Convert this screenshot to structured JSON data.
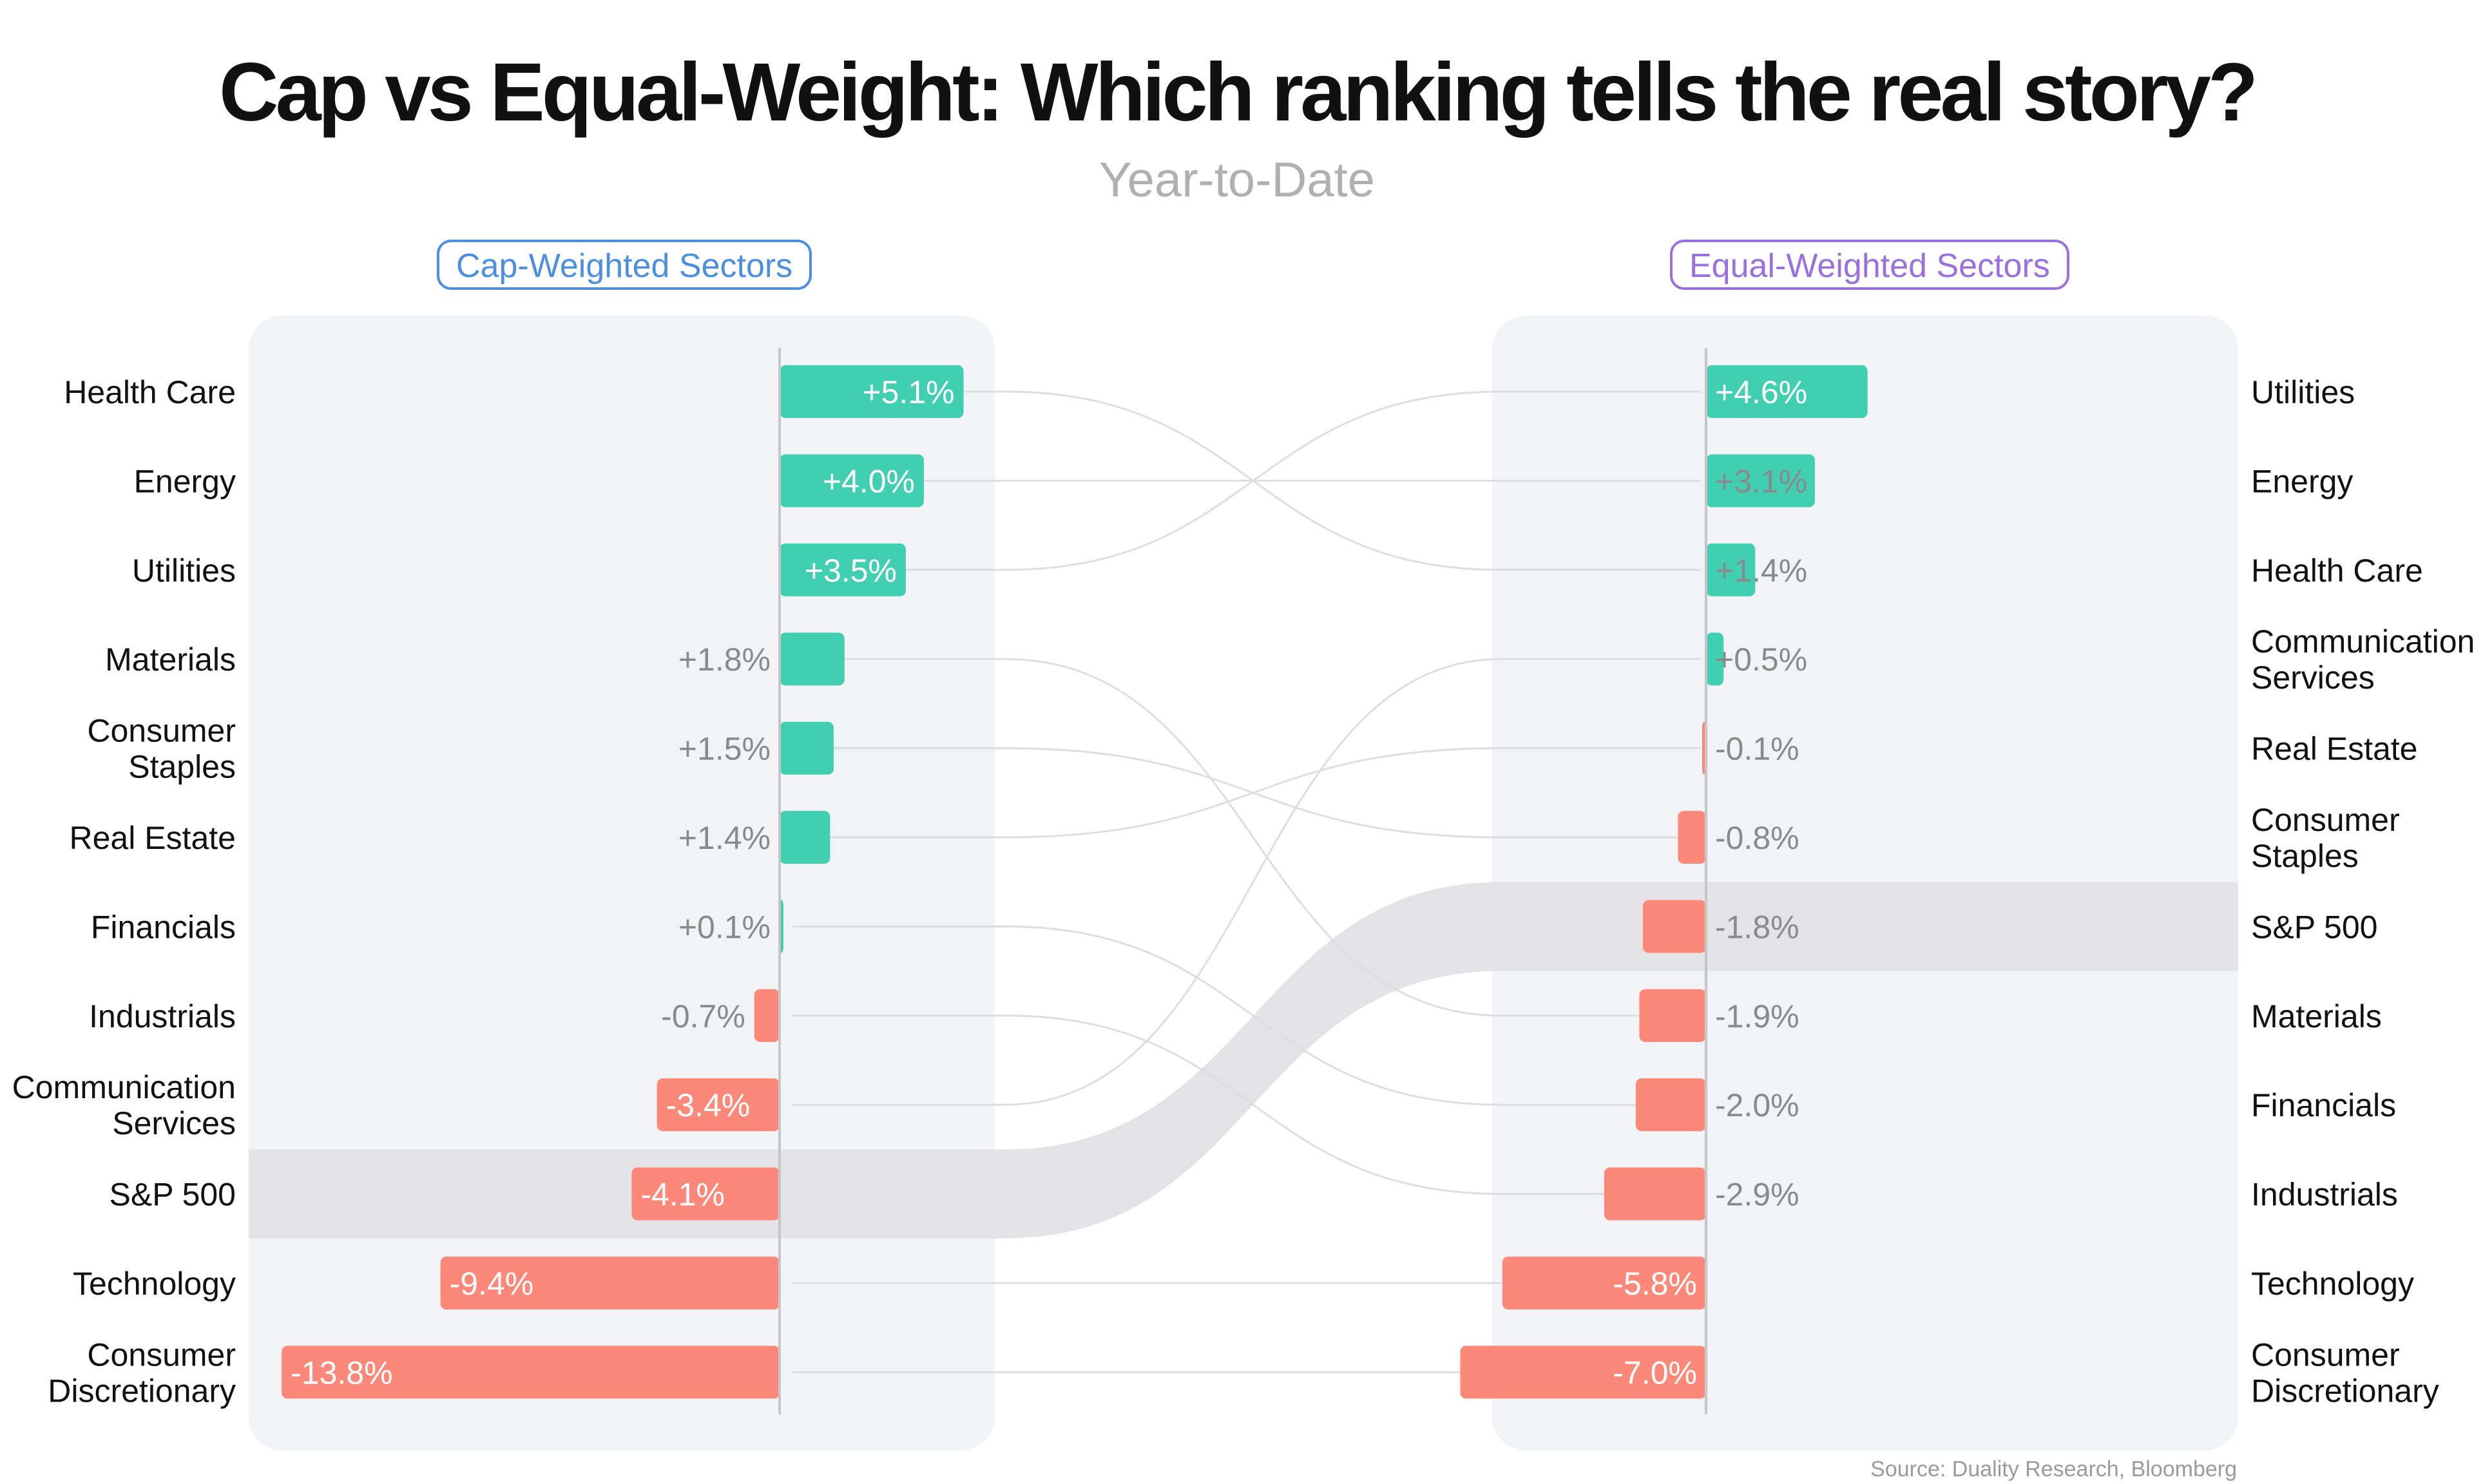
{
  "chart_data": {
    "type": "bar",
    "title": "Cap vs Equal-Weight: Which ranking tells the real story?",
    "subtitle": "Year-to-Date",
    "source": "Source: Duality Research, Bloomberg",
    "benchmark": "S&P 500",
    "colors": {
      "positive": "#40cfb1",
      "negative": "#fb8878",
      "benchmark_band": "#e3e3e6",
      "panel": "#f2f3f7",
      "connector": "#dedede"
    },
    "panels": [
      {
        "title": "Cap-Weighted Sectors",
        "title_color": "#4a8fe0",
        "categories": [
          "Health Care",
          "Energy",
          "Utilities",
          "Materials",
          "Consumer Staples",
          "Real Estate",
          "Financials",
          "Industrials",
          "Communication Services",
          "S&P 500",
          "Technology",
          "Consumer Discretionary"
        ],
        "values": [
          5.1,
          4.0,
          3.5,
          1.8,
          1.5,
          1.4,
          0.1,
          -0.7,
          -3.4,
          -4.1,
          -9.4,
          -13.8
        ],
        "labels": [
          "+5.1%",
          "+4.0%",
          "+3.5%",
          "+1.8%",
          "+1.5%",
          "+1.4%",
          "+0.1%",
          "-0.7%",
          "-3.4%",
          "-4.1%",
          "-9.4%",
          "-13.8%"
        ]
      },
      {
        "title": "Equal-Weighted Sectors",
        "title_color": "#9a6fe0",
        "categories": [
          "Utilities",
          "Energy",
          "Health Care",
          "Communication Services",
          "Real Estate",
          "Consumer Staples",
          "S&P 500",
          "Materials",
          "Financials",
          "Industrials",
          "Technology",
          "Consumer Discretionary"
        ],
        "values": [
          4.6,
          3.1,
          1.4,
          0.5,
          -0.1,
          -0.8,
          -1.8,
          -1.9,
          -2.0,
          -2.9,
          -5.8,
          -7.0
        ],
        "labels": [
          "+4.6%",
          "+3.1%",
          "+1.4%",
          "+0.5%",
          "-0.1%",
          "-0.8%",
          "-1.8%",
          "-1.9%",
          "-2.0%",
          "-2.9%",
          "-5.8%",
          "-7.0%"
        ]
      }
    ]
  }
}
